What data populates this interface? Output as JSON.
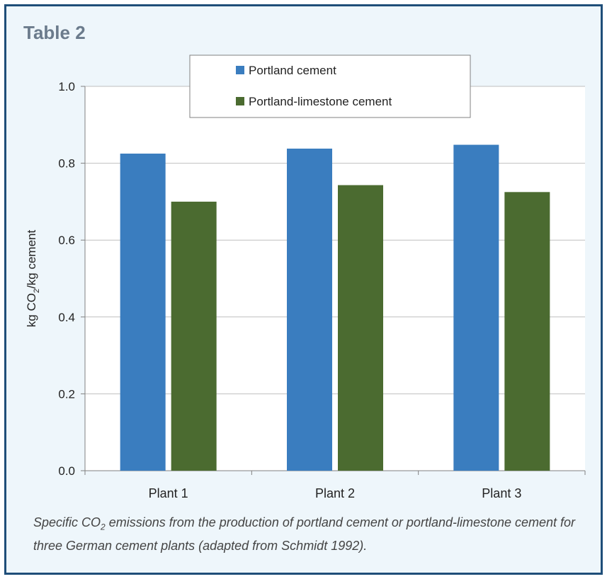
{
  "table_label": "Table 2",
  "caption": {
    "part1": "Specific CO",
    "sub": "2",
    "part2": " emissions from the production of portland cement or portland-limestone cement for three German cement plants (adapted from Schmidt 1992)."
  },
  "chart_data": {
    "type": "bar",
    "categories": [
      "Plant 1",
      "Plant 2",
      "Plant 3"
    ],
    "series": [
      {
        "name": "Portland cement",
        "color": "#3a7dbf",
        "values": [
          0.825,
          0.838,
          0.848
        ]
      },
      {
        "name": "Portland-limestone cement",
        "color": "#4b6b30",
        "values": [
          0.7,
          0.743,
          0.725
        ]
      }
    ],
    "ylabel_main": "kg CO",
    "ylabel_sub": "2",
    "ylabel_rest": "/kg cement",
    "ylim": [
      0,
      1.0
    ],
    "yticks": [
      "0.0",
      "0.2",
      "0.4",
      "0.6",
      "0.8",
      "1.0"
    ],
    "ytick_values": [
      0,
      0.2,
      0.4,
      0.6,
      0.8,
      1.0
    ],
    "grid": true,
    "legend_position": "top-center"
  }
}
